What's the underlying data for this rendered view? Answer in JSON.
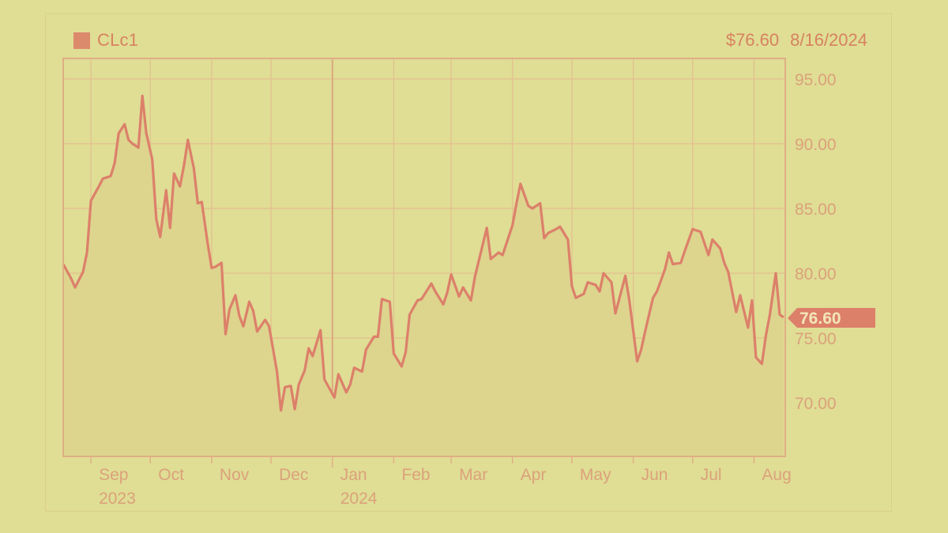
{
  "header": {
    "symbol": "CLc1",
    "last_price": "$76.60",
    "date": "8/16/2024"
  },
  "colors": {
    "background": "#e0dd95",
    "line": "#dc806a",
    "fill": "#ddd38e",
    "grid": "#e2b98a",
    "axis_text": "#dba27a",
    "price_tag": "#dc806a"
  },
  "price_tag": {
    "value": "76.60"
  },
  "y_axis": {
    "ticks": [
      "95.00",
      "90.00",
      "85.00",
      "80.00",
      "75.00",
      "70.00"
    ]
  },
  "x_axis": {
    "months": [
      {
        "label": "Sep",
        "year": "2023"
      },
      {
        "label": "Oct",
        "year": ""
      },
      {
        "label": "Nov",
        "year": ""
      },
      {
        "label": "Dec",
        "year": ""
      },
      {
        "label": "Jan",
        "year": "2024"
      },
      {
        "label": "Feb",
        "year": ""
      },
      {
        "label": "Mar",
        "year": ""
      },
      {
        "label": "Apr",
        "year": ""
      },
      {
        "label": "May",
        "year": ""
      },
      {
        "label": "Jun",
        "year": ""
      },
      {
        "label": "Jul",
        "year": ""
      },
      {
        "label": "Aug",
        "year": ""
      }
    ]
  },
  "chart_data": {
    "type": "area",
    "title": "CLc1",
    "subtitle": "$76.60 8/16/2024",
    "xlabel": "",
    "ylabel": "",
    "ylim": [
      65.8,
      96.5
    ],
    "grid": true,
    "legend_position": "top-left",
    "y_ticks": [
      70,
      75,
      80,
      85,
      90,
      95
    ],
    "x_ticks": [
      "Sep 2023",
      "Oct",
      "Nov",
      "Dec",
      "Jan 2024",
      "Feb",
      "Mar",
      "Apr",
      "May",
      "Jun",
      "Jul",
      "Aug"
    ],
    "series": [
      {
        "name": "CLc1",
        "last_value": 76.6,
        "points": [
          [
            "2023-08-18",
            80.7
          ],
          [
            "2023-08-22",
            79.6
          ],
          [
            "2023-08-24",
            78.9
          ],
          [
            "2023-08-28",
            80.1
          ],
          [
            "2023-08-30",
            81.6
          ],
          [
            "2023-09-01",
            85.6
          ],
          [
            "2023-09-05",
            86.7
          ],
          [
            "2023-09-07",
            87.3
          ],
          [
            "2023-09-11",
            87.5
          ],
          [
            "2023-09-13",
            88.5
          ],
          [
            "2023-09-15",
            90.8
          ],
          [
            "2023-09-18",
            91.5
          ],
          [
            "2023-09-20",
            90.3
          ],
          [
            "2023-09-22",
            90.0
          ],
          [
            "2023-09-25",
            89.7
          ],
          [
            "2023-09-27",
            93.7
          ],
          [
            "2023-09-29",
            90.8
          ],
          [
            "2023-10-02",
            88.8
          ],
          [
            "2023-10-04",
            84.2
          ],
          [
            "2023-10-06",
            82.8
          ],
          [
            "2023-10-09",
            86.4
          ],
          [
            "2023-10-11",
            83.5
          ],
          [
            "2023-10-13",
            87.7
          ],
          [
            "2023-10-16",
            86.7
          ],
          [
            "2023-10-18",
            88.3
          ],
          [
            "2023-10-20",
            90.3
          ],
          [
            "2023-10-23",
            88.1
          ],
          [
            "2023-10-25",
            85.4
          ],
          [
            "2023-10-27",
            85.5
          ],
          [
            "2023-10-30",
            82.3
          ],
          [
            "2023-11-01",
            80.4
          ],
          [
            "2023-11-03",
            80.5
          ],
          [
            "2023-11-06",
            80.8
          ],
          [
            "2023-11-08",
            75.3
          ],
          [
            "2023-11-10",
            77.2
          ],
          [
            "2023-11-13",
            78.3
          ],
          [
            "2023-11-15",
            76.7
          ],
          [
            "2023-11-17",
            75.9
          ],
          [
            "2023-11-20",
            77.8
          ],
          [
            "2023-11-22",
            77.1
          ],
          [
            "2023-11-24",
            75.5
          ],
          [
            "2023-11-28",
            76.4
          ],
          [
            "2023-11-30",
            75.9
          ],
          [
            "2023-12-04",
            72.4
          ],
          [
            "2023-12-06",
            69.4
          ],
          [
            "2023-12-08",
            71.2
          ],
          [
            "2023-12-11",
            71.3
          ],
          [
            "2023-12-13",
            69.5
          ],
          [
            "2023-12-15",
            71.4
          ],
          [
            "2023-12-18",
            72.5
          ],
          [
            "2023-12-20",
            74.2
          ],
          [
            "2023-12-22",
            73.6
          ],
          [
            "2023-12-26",
            75.6
          ],
          [
            "2023-12-28",
            71.8
          ],
          [
            "2024-01-02",
            70.4
          ],
          [
            "2024-01-04",
            72.2
          ],
          [
            "2024-01-08",
            70.8
          ],
          [
            "2024-01-10",
            71.4
          ],
          [
            "2024-01-12",
            72.7
          ],
          [
            "2024-01-16",
            72.4
          ],
          [
            "2024-01-18",
            74.1
          ],
          [
            "2024-01-22",
            75.1
          ],
          [
            "2024-01-24",
            75.1
          ],
          [
            "2024-01-26",
            78.0
          ],
          [
            "2024-01-30",
            77.8
          ],
          [
            "2024-02-01",
            73.8
          ],
          [
            "2024-02-05",
            72.8
          ],
          [
            "2024-02-07",
            73.9
          ],
          [
            "2024-02-09",
            76.8
          ],
          [
            "2024-02-13",
            77.9
          ],
          [
            "2024-02-15",
            78.0
          ],
          [
            "2024-02-20",
            79.2
          ],
          [
            "2024-02-22",
            78.6
          ],
          [
            "2024-02-26",
            77.6
          ],
          [
            "2024-02-28",
            78.5
          ],
          [
            "2024-03-01",
            79.9
          ],
          [
            "2024-03-05",
            78.2
          ],
          [
            "2024-03-07",
            78.9
          ],
          [
            "2024-03-11",
            77.9
          ],
          [
            "2024-03-13",
            79.7
          ],
          [
            "2024-03-15",
            81.0
          ],
          [
            "2024-03-19",
            83.5
          ],
          [
            "2024-03-21",
            81.1
          ],
          [
            "2024-03-25",
            81.6
          ],
          [
            "2024-03-27",
            81.4
          ],
          [
            "2024-04-01",
            83.7
          ],
          [
            "2024-04-03",
            85.4
          ],
          [
            "2024-04-05",
            86.9
          ],
          [
            "2024-04-09",
            85.2
          ],
          [
            "2024-04-11",
            85.0
          ],
          [
            "2024-04-15",
            85.4
          ],
          [
            "2024-04-17",
            82.7
          ],
          [
            "2024-04-19",
            83.1
          ],
          [
            "2024-04-23",
            83.4
          ],
          [
            "2024-04-25",
            83.6
          ],
          [
            "2024-04-29",
            82.6
          ],
          [
            "2024-05-01",
            79.0
          ],
          [
            "2024-05-03",
            78.1
          ],
          [
            "2024-05-07",
            78.4
          ],
          [
            "2024-05-09",
            79.3
          ],
          [
            "2024-05-13",
            79.1
          ],
          [
            "2024-05-15",
            78.6
          ],
          [
            "2024-05-17",
            80.0
          ],
          [
            "2024-05-21",
            79.3
          ],
          [
            "2024-05-23",
            76.9
          ],
          [
            "2024-05-28",
            79.8
          ],
          [
            "2024-05-30",
            77.9
          ],
          [
            "2024-06-03",
            73.2
          ],
          [
            "2024-06-05",
            74.1
          ],
          [
            "2024-06-07",
            75.5
          ],
          [
            "2024-06-11",
            78.1
          ],
          [
            "2024-06-13",
            78.6
          ],
          [
            "2024-06-17",
            80.3
          ],
          [
            "2024-06-19",
            81.6
          ],
          [
            "2024-06-21",
            80.7
          ],
          [
            "2024-06-25",
            80.8
          ],
          [
            "2024-06-27",
            81.7
          ],
          [
            "2024-07-01",
            83.4
          ],
          [
            "2024-07-03",
            83.3
          ],
          [
            "2024-07-05",
            83.2
          ],
          [
            "2024-07-09",
            81.4
          ],
          [
            "2024-07-11",
            82.6
          ],
          [
            "2024-07-15",
            81.9
          ],
          [
            "2024-07-17",
            80.8
          ],
          [
            "2024-07-19",
            80.1
          ],
          [
            "2024-07-23",
            77.0
          ],
          [
            "2024-07-25",
            78.3
          ],
          [
            "2024-07-29",
            75.8
          ],
          [
            "2024-07-31",
            77.9
          ],
          [
            "2024-08-02",
            73.5
          ],
          [
            "2024-08-05",
            73.0
          ],
          [
            "2024-08-07",
            75.2
          ],
          [
            "2024-08-09",
            76.8
          ],
          [
            "2024-08-12",
            80.0
          ],
          [
            "2024-08-14",
            76.8
          ],
          [
            "2024-08-16",
            76.6
          ]
        ]
      }
    ]
  }
}
